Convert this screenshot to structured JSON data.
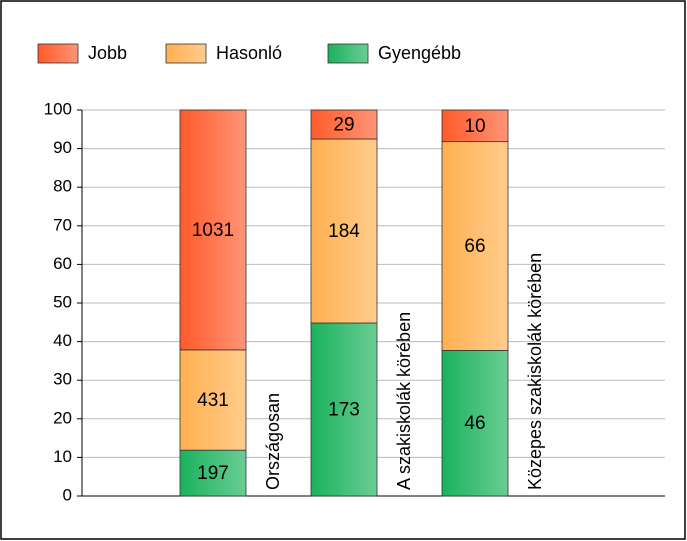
{
  "chart_data": {
    "type": "bar",
    "stacking": "percent",
    "categories": [
      "Országosan",
      "A szakiskolák körében",
      "Közepes szakiskolák körében"
    ],
    "series": [
      {
        "name": "Jobb",
        "color": "#ff5a2a",
        "values": [
          1031,
          29,
          10
        ]
      },
      {
        "name": "Hasonló",
        "color": "#ffb050",
        "values": [
          431,
          184,
          66
        ]
      },
      {
        "name": "Gyengébb",
        "color": "#1ab25c",
        "values": [
          197,
          173,
          46
        ]
      }
    ],
    "ylim": [
      0,
      100
    ],
    "yticks": [
      0,
      10,
      20,
      30,
      40,
      50,
      60,
      70,
      80,
      90,
      100
    ],
    "grid": true,
    "legend": "top"
  }
}
